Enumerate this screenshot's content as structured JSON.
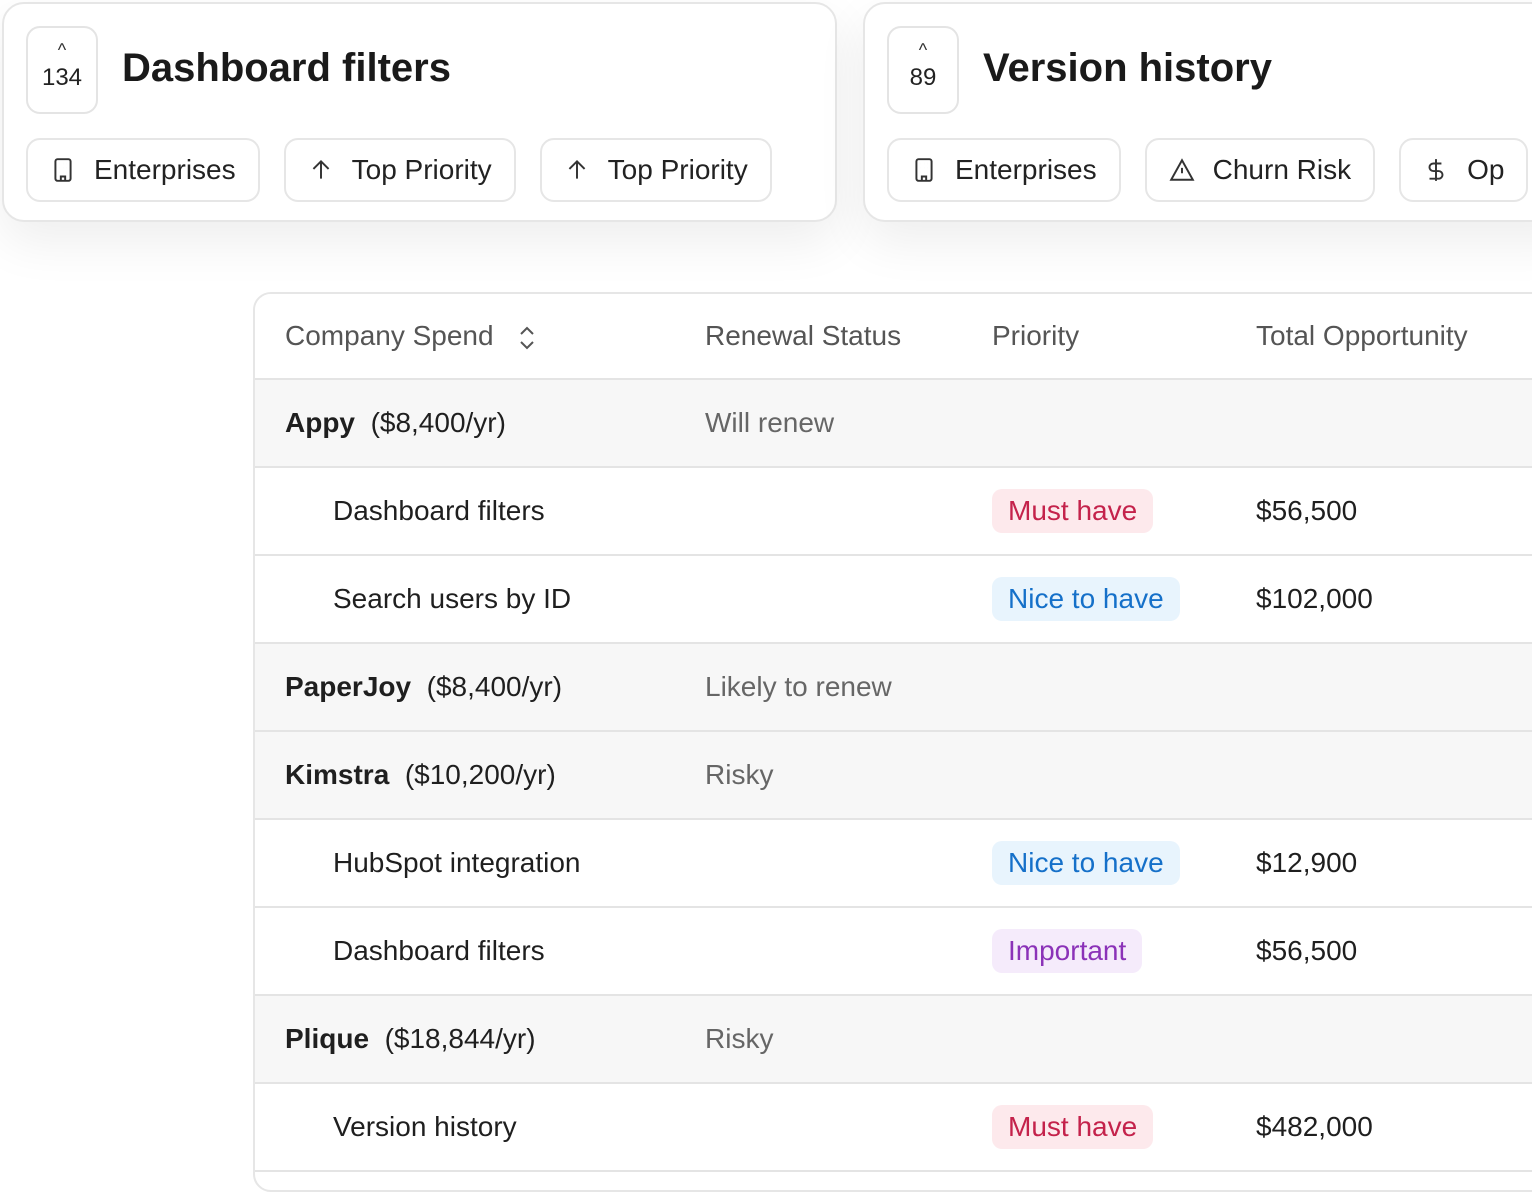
{
  "cards": [
    {
      "votes": "134",
      "title": "Dashboard filters",
      "chips": [
        {
          "icon": "building-icon",
          "label": "Enterprises"
        },
        {
          "icon": "arrow-up-icon",
          "label": "Top Priority"
        },
        {
          "icon": "arrow-up-icon",
          "label": "Top Priority"
        }
      ]
    },
    {
      "votes": "89",
      "title": "Version history",
      "chips": [
        {
          "icon": "building-icon",
          "label": "Enterprises"
        },
        {
          "icon": "warning-icon",
          "label": "Churn Risk"
        },
        {
          "icon": "dollar-icon",
          "label": "Op"
        }
      ]
    }
  ],
  "table": {
    "headers": {
      "company": "Company Spend",
      "renewal": "Renewal Status",
      "priority": "Priority",
      "total": "Total Opportunity"
    },
    "rows": [
      {
        "type": "group",
        "name": "Appy",
        "spend": "($8,400/yr)",
        "status": "Will renew"
      },
      {
        "type": "item",
        "name": "Dashboard filters",
        "priority": "Must have",
        "total": "$56,500"
      },
      {
        "type": "item",
        "name": "Search users by ID",
        "priority": "Nice to have",
        "total": "$102,000"
      },
      {
        "type": "group",
        "name": "PaperJoy",
        "spend": "($8,400/yr)",
        "status": "Likely to renew"
      },
      {
        "type": "group",
        "name": "Kimstra",
        "spend": "($10,200/yr)",
        "status": "Risky"
      },
      {
        "type": "item",
        "name": "HubSpot integration",
        "priority": "Nice to have",
        "total": "$12,900"
      },
      {
        "type": "item",
        "name": "Dashboard filters",
        "priority": "Important",
        "total": "$56,500"
      },
      {
        "type": "group",
        "name": "Plique",
        "spend": "($18,844/yr)",
        "status": "Risky"
      },
      {
        "type": "item",
        "name": "Version history",
        "priority": "Must have",
        "total": "$482,000"
      }
    ]
  },
  "colors": {
    "must_have": "#c4224b",
    "nice_to_have": "#1570c9",
    "important": "#8b32b8"
  }
}
